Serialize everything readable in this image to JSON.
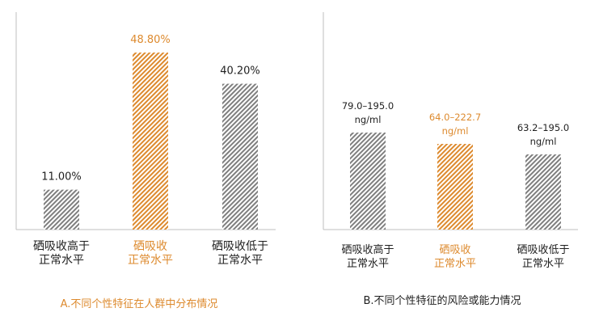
{
  "colors": {
    "gray": "#7f7f7f",
    "orange": "#dd8a2e",
    "axis": "#bfbfbf",
    "text": "#1f1f1f"
  },
  "chart_data": [
    {
      "type": "bar",
      "caption": "A.不同个性特征在人群中分布情况",
      "categories": [
        [
          "硒吸收高于",
          "正常水平"
        ],
        [
          "硒吸收",
          "正常水平"
        ],
        [
          "硒吸收低于",
          "正常水平"
        ]
      ],
      "values": [
        11.0,
        48.8,
        40.2
      ],
      "value_labels": [
        "11.00%",
        "48.80%",
        "40.20%"
      ],
      "highlight_index": 1,
      "ylim": [
        0,
        50
      ]
    },
    {
      "type": "bar",
      "caption": "B.不同个性特征的风险或能力情况",
      "categories": [
        [
          "硒吸收高于",
          "正常水平"
        ],
        [
          "硒吸收",
          "正常水平"
        ],
        [
          "硒吸收低于",
          "正常水平"
        ]
      ],
      "values": [
        129,
        115,
        112
      ],
      "value_labels": [
        [
          "79.0–195.0",
          "ng/ml"
        ],
        [
          "64.0–222.7",
          "ng/ml"
        ],
        [
          "63.2–195.0",
          "ng/ml"
        ]
      ],
      "highlight_index": 1
    }
  ]
}
